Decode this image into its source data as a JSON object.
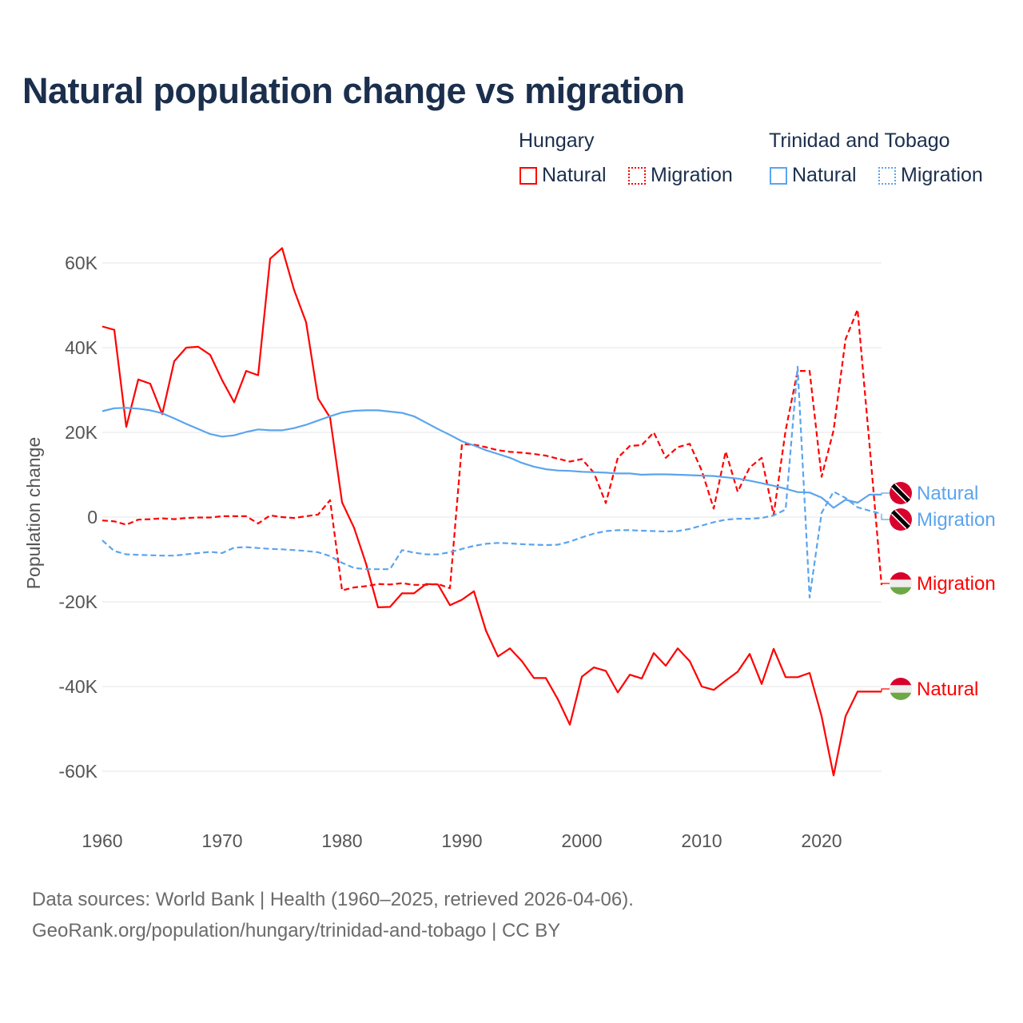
{
  "title": "Natural population change vs migration",
  "legend": {
    "groups": [
      {
        "name": "Hungary",
        "items": [
          {
            "label": "Natural",
            "style": "solid"
          },
          {
            "label": "Migration",
            "style": "dotted"
          }
        ]
      },
      {
        "name": "Trinidad and Tobago",
        "items": [
          {
            "label": "Natural",
            "style": "solid"
          },
          {
            "label": "Migration",
            "style": "dotted"
          }
        ]
      }
    ]
  },
  "footer": {
    "line1": "Data sources: World Bank | Health (1960–2025, retrieved 2026-04-06).",
    "line2": "GeoRank.org/population/hungary/trinidad-and-tobago | CC BY"
  },
  "chart_data": {
    "type": "line",
    "title": "Natural population change vs migration",
    "ylabel": "Population change",
    "xlabel": "",
    "xlim": [
      1960,
      2025
    ],
    "ylim": [
      -70000,
      70000
    ],
    "x_ticks": [
      1960,
      1970,
      1980,
      1990,
      2000,
      2010,
      2020
    ],
    "x_tick_labels": [
      "1960",
      "1970",
      "1980",
      "1990",
      "2000",
      "2010",
      "2020"
    ],
    "y_ticks": [
      60000,
      40000,
      20000,
      0,
      -20000,
      -40000,
      -60000
    ],
    "y_tick_labels": [
      "60K",
      "40K",
      "20K",
      "0",
      "-20K",
      "-40K",
      "-60K"
    ],
    "grid": true,
    "x_start": 1960,
    "series": [
      {
        "name": "Hungary Natural",
        "end_label": "Natural",
        "color": "#ff0000",
        "dash": false,
        "flag": "hungary",
        "values": [
          45,
          44.2,
          21.3,
          32.5,
          31.5,
          24.3,
          36.8,
          40,
          40.2,
          38.3,
          32.3,
          27.1,
          34.5,
          33.5,
          61,
          63.5,
          53.6,
          46,
          28,
          23.5,
          3.5,
          -2.5,
          -11,
          -21.3,
          -21.2,
          -18,
          -18,
          -15.8,
          -15.9,
          -20.8,
          -19.5,
          -17.5,
          -26.8,
          -32.9,
          -31,
          -34,
          -38,
          -38,
          -43,
          -49,
          -37.7,
          -35.5,
          -36.3,
          -41.4,
          -37.2,
          -38.1,
          -32.1,
          -35.1,
          -31,
          -34,
          -40,
          -40.8,
          -38.6,
          -36.5,
          -32.3,
          -39.4,
          -31.1,
          -37.8,
          -37.8,
          -36.8,
          -47,
          -61,
          -47,
          -41.2,
          -41.2,
          -41.2
        ]
      },
      {
        "name": "Hungary Migration",
        "end_label": "Migration",
        "color": "#ff0000",
        "dash": true,
        "flag": "hungary",
        "values": [
          -0.8,
          -1,
          -1.8,
          -0.6,
          -0.5,
          -0.3,
          -0.5,
          -0.2,
          -0.1,
          -0.1,
          0.2,
          0.2,
          0.2,
          -1.5,
          0.4,
          0,
          -0.2,
          0.2,
          0.6,
          4,
          -17.3,
          -16.6,
          -16.3,
          -15.8,
          -15.9,
          -15.6,
          -16,
          -16,
          -15.8,
          -16.8,
          17.2,
          17.1,
          16.5,
          15.8,
          15.4,
          15.2,
          14.9,
          14.5,
          13.8,
          13.1,
          13.7,
          10.5,
          3.3,
          14,
          16.8,
          17,
          20,
          14,
          16.5,
          17.3,
          11,
          2,
          15.5,
          6,
          11.7,
          14,
          0.5,
          20.5,
          34.5,
          34.5,
          9.5,
          20.5,
          42,
          49,
          17,
          -16
        ]
      },
      {
        "name": "Trinidad and Tobago Natural",
        "end_label": "Natural",
        "color": "#5ba4ee",
        "dash": false,
        "flag": "trinidad",
        "values": [
          25,
          25.7,
          25.8,
          25.6,
          25.2,
          24.5,
          23.3,
          22,
          20.8,
          19.6,
          19,
          19.3,
          20.1,
          20.7,
          20.5,
          20.5,
          21,
          21.8,
          22.8,
          23.8,
          24.7,
          25.1,
          25.2,
          25.2,
          24.9,
          24.6,
          23.8,
          22.3,
          20.8,
          19.4,
          17.9,
          16.9,
          15.8,
          14.9,
          14,
          12.8,
          11.9,
          11.3,
          11,
          10.9,
          10.7,
          10.6,
          10.5,
          10.3,
          10.3,
          10,
          10.1,
          10.1,
          10,
          9.9,
          9.8,
          9.7,
          9.4,
          9.1,
          8.6,
          8,
          7.4,
          6.7,
          5.9,
          5.8,
          4.6,
          2.2,
          4.1,
          3.4,
          5.3,
          5.3
        ]
      },
      {
        "name": "Trinidad and Tobago Migration",
        "end_label": "Migration",
        "color": "#5ba4ee",
        "dash": true,
        "flag": "trinidad",
        "values": [
          -5.5,
          -8,
          -8.8,
          -8.9,
          -9,
          -9.1,
          -9.1,
          -8.8,
          -8.5,
          -8.2,
          -8.5,
          -7.2,
          -7.1,
          -7.3,
          -7.5,
          -7.6,
          -7.8,
          -8,
          -8.3,
          -9.2,
          -10.8,
          -12,
          -12.3,
          -12.3,
          -12.3,
          -7.8,
          -8.4,
          -8.8,
          -8.8,
          -8.3,
          -7.5,
          -6.8,
          -6.3,
          -6.1,
          -6.2,
          -6.4,
          -6.5,
          -6.6,
          -6.5,
          -5.8,
          -4.8,
          -3.9,
          -3.3,
          -3.1,
          -3.1,
          -3.2,
          -3.3,
          -3.4,
          -3.3,
          -2.8,
          -2,
          -1.2,
          -0.6,
          -0.4,
          -0.4,
          -0.2,
          0.4,
          1.8,
          35.5,
          -19,
          1,
          6,
          4.5,
          2.3,
          1.5,
          0.8
        ]
      }
    ],
    "values_unit": "thousands"
  }
}
